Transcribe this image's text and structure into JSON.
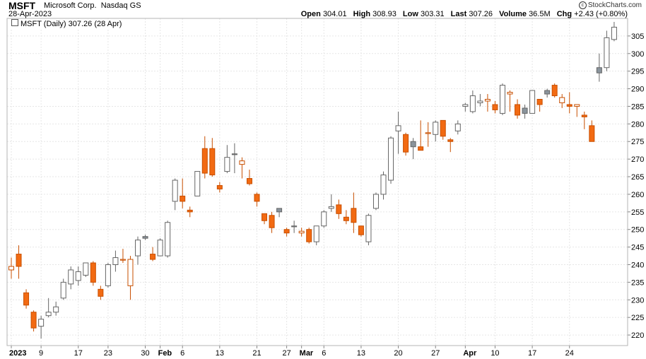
{
  "header": {
    "ticker": "MSFT",
    "company": "Microsoft Corp.",
    "exchange": "Nasdaq GS",
    "date": "28-Apr-2023",
    "copyright": "StockCharts.com",
    "quote": {
      "open_label": "Open",
      "open": "304.01",
      "high_label": "High",
      "high": "308.93",
      "low_label": "Low",
      "low": "303.31",
      "last_label": "Last",
      "last": "307.26",
      "volume_label": "Volume",
      "volume": "36.5M",
      "chg_label": "Chg",
      "chg": "+2.43 (+0.80%)"
    }
  },
  "legend": {
    "text": "MSFT (Daily) 307.26 (28 Apr)"
  },
  "colors": {
    "up": "#ffffff",
    "up_stroke": "#666666",
    "down": "#f26a12",
    "down_stroke": "#c84f00",
    "gray_fill": "#8a949c",
    "grid": "#e6e6e6",
    "axis": "#888888"
  },
  "chart_data": {
    "type": "candlestick",
    "ylim": [
      217,
      310
    ],
    "y_ticks": [
      220,
      225,
      230,
      235,
      240,
      245,
      250,
      255,
      260,
      265,
      270,
      275,
      280,
      285,
      290,
      295,
      300,
      305
    ],
    "x_labels": [
      {
        "label": "2023",
        "bold": true,
        "i": 0
      },
      {
        "label": "9",
        "bold": false,
        "i": 4
      },
      {
        "label": "17",
        "bold": false,
        "i": 9
      },
      {
        "label": "23",
        "bold": false,
        "i": 13
      },
      {
        "label": "30",
        "bold": false,
        "i": 18
      },
      {
        "label": "Feb",
        "bold": true,
        "i": 20
      },
      {
        "label": "6",
        "bold": false,
        "i": 23
      },
      {
        "label": "13",
        "bold": false,
        "i": 28
      },
      {
        "label": "21",
        "bold": false,
        "i": 33
      },
      {
        "label": "27",
        "bold": false,
        "i": 37
      },
      {
        "label": "Mar",
        "bold": true,
        "i": 39
      },
      {
        "label": "6",
        "bold": false,
        "i": 42
      },
      {
        "label": "13",
        "bold": false,
        "i": 47
      },
      {
        "label": "20",
        "bold": false,
        "i": 52
      },
      {
        "label": "27",
        "bold": false,
        "i": 57
      },
      {
        "label": "Apr",
        "bold": true,
        "i": 61
      },
      {
        "label": "10",
        "bold": false,
        "i": 65
      },
      {
        "label": "17",
        "bold": false,
        "i": 70
      },
      {
        "label": "24",
        "bold": false,
        "i": 75
      }
    ],
    "candles": [
      {
        "o": 239.5,
        "h": 242,
        "l": 236,
        "c": 238.5,
        "k": "ho"
      },
      {
        "o": 243,
        "h": 245.5,
        "l": 236,
        "c": 239.5,
        "k": "fo"
      },
      {
        "o": 232,
        "h": 233,
        "l": 227.5,
        "c": 228.5,
        "k": "fo"
      },
      {
        "o": 226.5,
        "h": 227,
        "l": 221,
        "c": 222,
        "k": "fo"
      },
      {
        "o": 222.5,
        "h": 225.5,
        "l": 219,
        "c": 224.5,
        "k": "hg"
      },
      {
        "o": 225.5,
        "h": 230.5,
        "l": 225,
        "c": 226.5,
        "k": "hg"
      },
      {
        "o": 226.5,
        "h": 229.5,
        "l": 225.5,
        "c": 228,
        "k": "hg"
      },
      {
        "o": 230.5,
        "h": 236,
        "l": 230,
        "c": 235,
        "k": "hg"
      },
      {
        "o": 234.5,
        "h": 239.5,
        "l": 233,
        "c": 238.5,
        "k": "hg"
      },
      {
        "o": 235.5,
        "h": 239.5,
        "l": 234,
        "c": 238,
        "k": "hg"
      },
      {
        "o": 237,
        "h": 240.5,
        "l": 236.5,
        "c": 240.5,
        "k": "hg"
      },
      {
        "o": 240.5,
        "h": 241,
        "l": 234,
        "c": 235,
        "k": "fo"
      },
      {
        "o": 233,
        "h": 234,
        "l": 230,
        "c": 231,
        "k": "fo"
      },
      {
        "o": 234,
        "h": 240.5,
        "l": 233.5,
        "c": 240,
        "k": "hg"
      },
      {
        "o": 240,
        "h": 244,
        "l": 238,
        "c": 242,
        "k": "hg"
      },
      {
        "o": 241.5,
        "h": 244.5,
        "l": 240.5,
        "c": 241.5,
        "k": "ho"
      },
      {
        "o": 234,
        "h": 242.5,
        "l": 230,
        "c": 241.5,
        "k": "ho"
      },
      {
        "o": 242.5,
        "h": 248,
        "l": 240,
        "c": 247,
        "k": "hg"
      },
      {
        "o": 247.5,
        "h": 248.5,
        "l": 247,
        "c": 248,
        "k": "fg"
      },
      {
        "o": 243,
        "h": 245,
        "l": 241,
        "c": 241.5,
        "k": "fo"
      },
      {
        "o": 242.5,
        "h": 247.5,
        "l": 242.5,
        "c": 247,
        "k": "hg"
      },
      {
        "o": 242.5,
        "h": 252.5,
        "l": 242,
        "c": 252,
        "k": "hg"
      },
      {
        "o": 258,
        "h": 264.5,
        "l": 255.5,
        "c": 264,
        "k": "hg"
      },
      {
        "o": 259.5,
        "h": 264.5,
        "l": 256,
        "c": 258,
        "k": "fo"
      },
      {
        "o": 255,
        "h": 256.5,
        "l": 253.5,
        "c": 255.5,
        "k": "fo"
      },
      {
        "o": 259.5,
        "h": 266,
        "l": 259.5,
        "c": 266.5,
        "k": "hg"
      },
      {
        "o": 273,
        "h": 276.5,
        "l": 264.5,
        "c": 266,
        "k": "fo"
      },
      {
        "o": 273,
        "h": 276,
        "l": 265,
        "c": 265.5,
        "k": "fo"
      },
      {
        "o": 262.5,
        "h": 263.5,
        "l": 260.5,
        "c": 261.5,
        "k": "fo"
      },
      {
        "o": 266.5,
        "h": 274,
        "l": 266,
        "c": 270.5,
        "k": "hg"
      },
      {
        "o": 271.5,
        "h": 274.5,
        "l": 266,
        "c": 271.5,
        "k": "fg"
      },
      {
        "o": 269.5,
        "h": 270.5,
        "l": 264.5,
        "c": 268.5,
        "k": "ho"
      },
      {
        "o": 264.5,
        "h": 267,
        "l": 262.5,
        "c": 263,
        "k": "fo"
      },
      {
        "o": 260,
        "h": 260.5,
        "l": 256.5,
        "c": 258,
        "k": "fo"
      },
      {
        "o": 254.5,
        "h": 254.5,
        "l": 251.5,
        "c": 252.5,
        "k": "fo"
      },
      {
        "o": 254,
        "h": 255,
        "l": 249,
        "c": 250.5,
        "k": "fo"
      },
      {
        "o": 255,
        "h": 256,
        "l": 253.5,
        "c": 256,
        "k": "fg"
      },
      {
        "o": 250,
        "h": 250.5,
        "l": 248,
        "c": 249,
        "k": "fo"
      },
      {
        "o": 251,
        "h": 252.5,
        "l": 249,
        "c": 251,
        "k": "fg"
      },
      {
        "o": 249.5,
        "h": 250.5,
        "l": 248,
        "c": 249,
        "k": "ho"
      },
      {
        "o": 250,
        "h": 250.5,
        "l": 246,
        "c": 246.5,
        "k": "fo"
      },
      {
        "o": 246.5,
        "h": 251,
        "l": 245.5,
        "c": 251,
        "k": "hg"
      },
      {
        "o": 251,
        "h": 255.5,
        "l": 250.5,
        "c": 255,
        "k": "hg"
      },
      {
        "o": 256,
        "h": 260,
        "l": 255,
        "c": 256.5,
        "k": "hg"
      },
      {
        "o": 257,
        "h": 258.5,
        "l": 253,
        "c": 254.5,
        "k": "fo"
      },
      {
        "o": 253.5,
        "h": 255.5,
        "l": 251.5,
        "c": 252.5,
        "k": "fo"
      },
      {
        "o": 256,
        "h": 260.5,
        "l": 249,
        "c": 252,
        "k": "fo"
      },
      {
        "o": 251,
        "h": 251,
        "l": 248,
        "c": 248.5,
        "k": "fo"
      },
      {
        "o": 246.5,
        "h": 254.5,
        "l": 245.5,
        "c": 254,
        "k": "hg"
      },
      {
        "o": 256,
        "h": 260.5,
        "l": 255.5,
        "c": 260,
        "k": "hg"
      },
      {
        "o": 260,
        "h": 266.5,
        "l": 258.5,
        "c": 265.5,
        "k": "hg"
      },
      {
        "o": 264,
        "h": 276.5,
        "l": 263,
        "c": 276,
        "k": "hg"
      },
      {
        "o": 278,
        "h": 283.5,
        "l": 271.5,
        "c": 279.5,
        "k": "hg"
      },
      {
        "o": 277,
        "h": 277.5,
        "l": 271,
        "c": 272,
        "k": "fo"
      },
      {
        "o": 275,
        "h": 276,
        "l": 270,
        "c": 273.5,
        "k": "fg"
      },
      {
        "o": 273.5,
        "h": 281,
        "l": 272.5,
        "c": 272.5,
        "k": "fo"
      },
      {
        "o": 277.5,
        "h": 280.5,
        "l": 273.5,
        "c": 277.5,
        "k": "ho"
      },
      {
        "o": 277,
        "h": 281,
        "l": 275,
        "c": 280.5,
        "k": "hg"
      },
      {
        "o": 281,
        "h": 281,
        "l": 275.5,
        "c": 276.5,
        "k": "fo"
      },
      {
        "o": 275.5,
        "h": 276,
        "l": 272,
        "c": 275,
        "k": "fo"
      },
      {
        "o": 278,
        "h": 281,
        "l": 277,
        "c": 280,
        "k": "hg"
      },
      {
        "o": 285.5,
        "h": 286,
        "l": 283.5,
        "c": 285,
        "k": "hg"
      },
      {
        "o": 283.5,
        "h": 289.5,
        "l": 283,
        "c": 288,
        "k": "hg"
      },
      {
        "o": 286,
        "h": 288.5,
        "l": 285,
        "c": 286.5,
        "k": "hg"
      },
      {
        "o": 287,
        "h": 288.5,
        "l": 283.5,
        "c": 286.5,
        "k": "ho"
      },
      {
        "o": 285.5,
        "h": 286.5,
        "l": 283,
        "c": 284,
        "k": "fo"
      },
      {
        "o": 283,
        "h": 291.5,
        "l": 282.5,
        "c": 291,
        "k": "hg"
      },
      {
        "o": 289,
        "h": 289.5,
        "l": 283.5,
        "c": 288.5,
        "k": "ho"
      },
      {
        "o": 285.5,
        "h": 287,
        "l": 281.5,
        "c": 282.5,
        "k": "fo"
      },
      {
        "o": 284.5,
        "h": 285.5,
        "l": 281.5,
        "c": 283,
        "k": "fg"
      },
      {
        "o": 283,
        "h": 289.5,
        "l": 283,
        "c": 289.5,
        "k": "hg"
      },
      {
        "o": 287,
        "h": 287,
        "l": 283.5,
        "c": 285.5,
        "k": "fo"
      },
      {
        "o": 288.5,
        "h": 290,
        "l": 287.5,
        "c": 289.5,
        "k": "fg"
      },
      {
        "o": 291,
        "h": 291.5,
        "l": 287.5,
        "c": 288,
        "k": "fo"
      },
      {
        "o": 287.5,
        "h": 288.5,
        "l": 284.5,
        "c": 286,
        "k": "ho"
      },
      {
        "o": 285.5,
        "h": 289,
        "l": 283,
        "c": 285,
        "k": "fo"
      },
      {
        "o": 285.5,
        "h": 285.5,
        "l": 282,
        "c": 285,
        "k": "ho"
      },
      {
        "o": 282.5,
        "h": 283.5,
        "l": 278.5,
        "c": 282,
        "k": "fo"
      },
      {
        "o": 279.5,
        "h": 281,
        "l": 275,
        "c": 275,
        "k": "fo"
      },
      {
        "o": 294.5,
        "h": 300,
        "l": 292,
        "c": 296,
        "k": "fg"
      },
      {
        "o": 296,
        "h": 306.5,
        "l": 295,
        "c": 304.5,
        "k": "hg"
      },
      {
        "o": 304,
        "h": 309,
        "l": 303.5,
        "c": 307.5,
        "k": "hg"
      }
    ]
  }
}
